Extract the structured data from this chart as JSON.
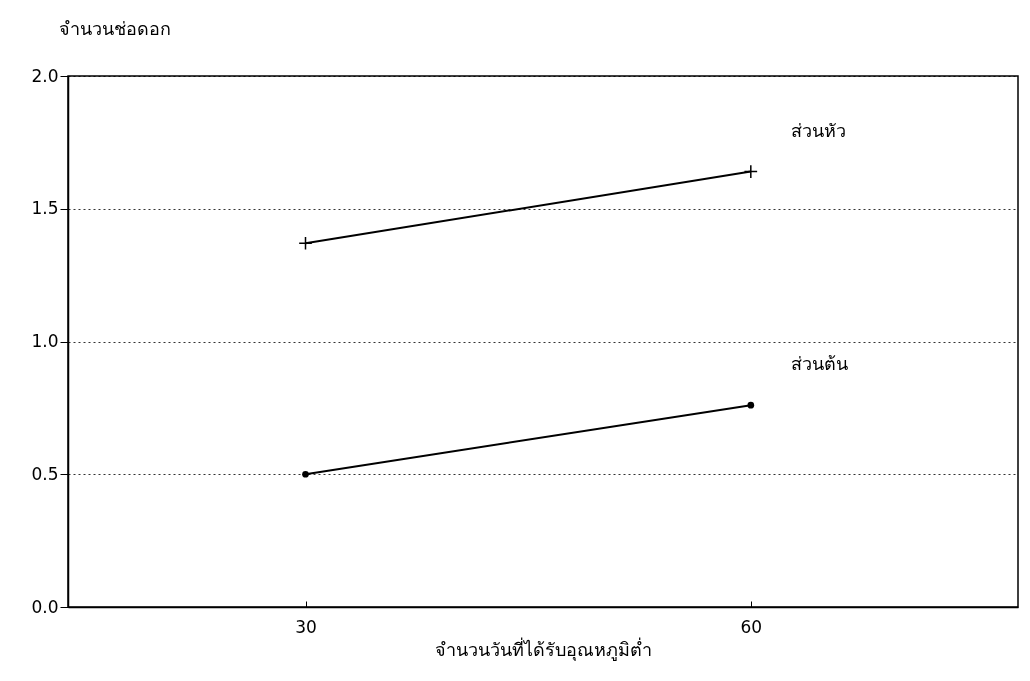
{
  "chart_data": {
    "type": "line",
    "ylabel": "จำนวนช่อดอก",
    "xlabel": "จำนวนวันที่ได้รับอุณหภูมิต่ำ",
    "x": [
      30,
      60
    ],
    "series": [
      {
        "name": "ส่วนหัว",
        "color": "#000000",
        "marker": "cross",
        "values": [
          1.37,
          1.64
        ]
      },
      {
        "name": "ส่วนต้น",
        "color": "#000000",
        "marker": "circle",
        "values": [
          0.5,
          0.76
        ]
      }
    ],
    "xlim": [
      14,
      78
    ],
    "xticks": [
      30,
      60
    ],
    "ylim": [
      0,
      2
    ],
    "yticks": [
      {
        "value": 0,
        "label": "0.0"
      },
      {
        "value": 0.5,
        "label": "0.5"
      },
      {
        "value": 1,
        "label": "1.0"
      },
      {
        "value": 1.5,
        "label": "1.5"
      },
      {
        "value": 2,
        "label": "2.0"
      }
    ],
    "grid": "y",
    "line_style": "solid"
  }
}
